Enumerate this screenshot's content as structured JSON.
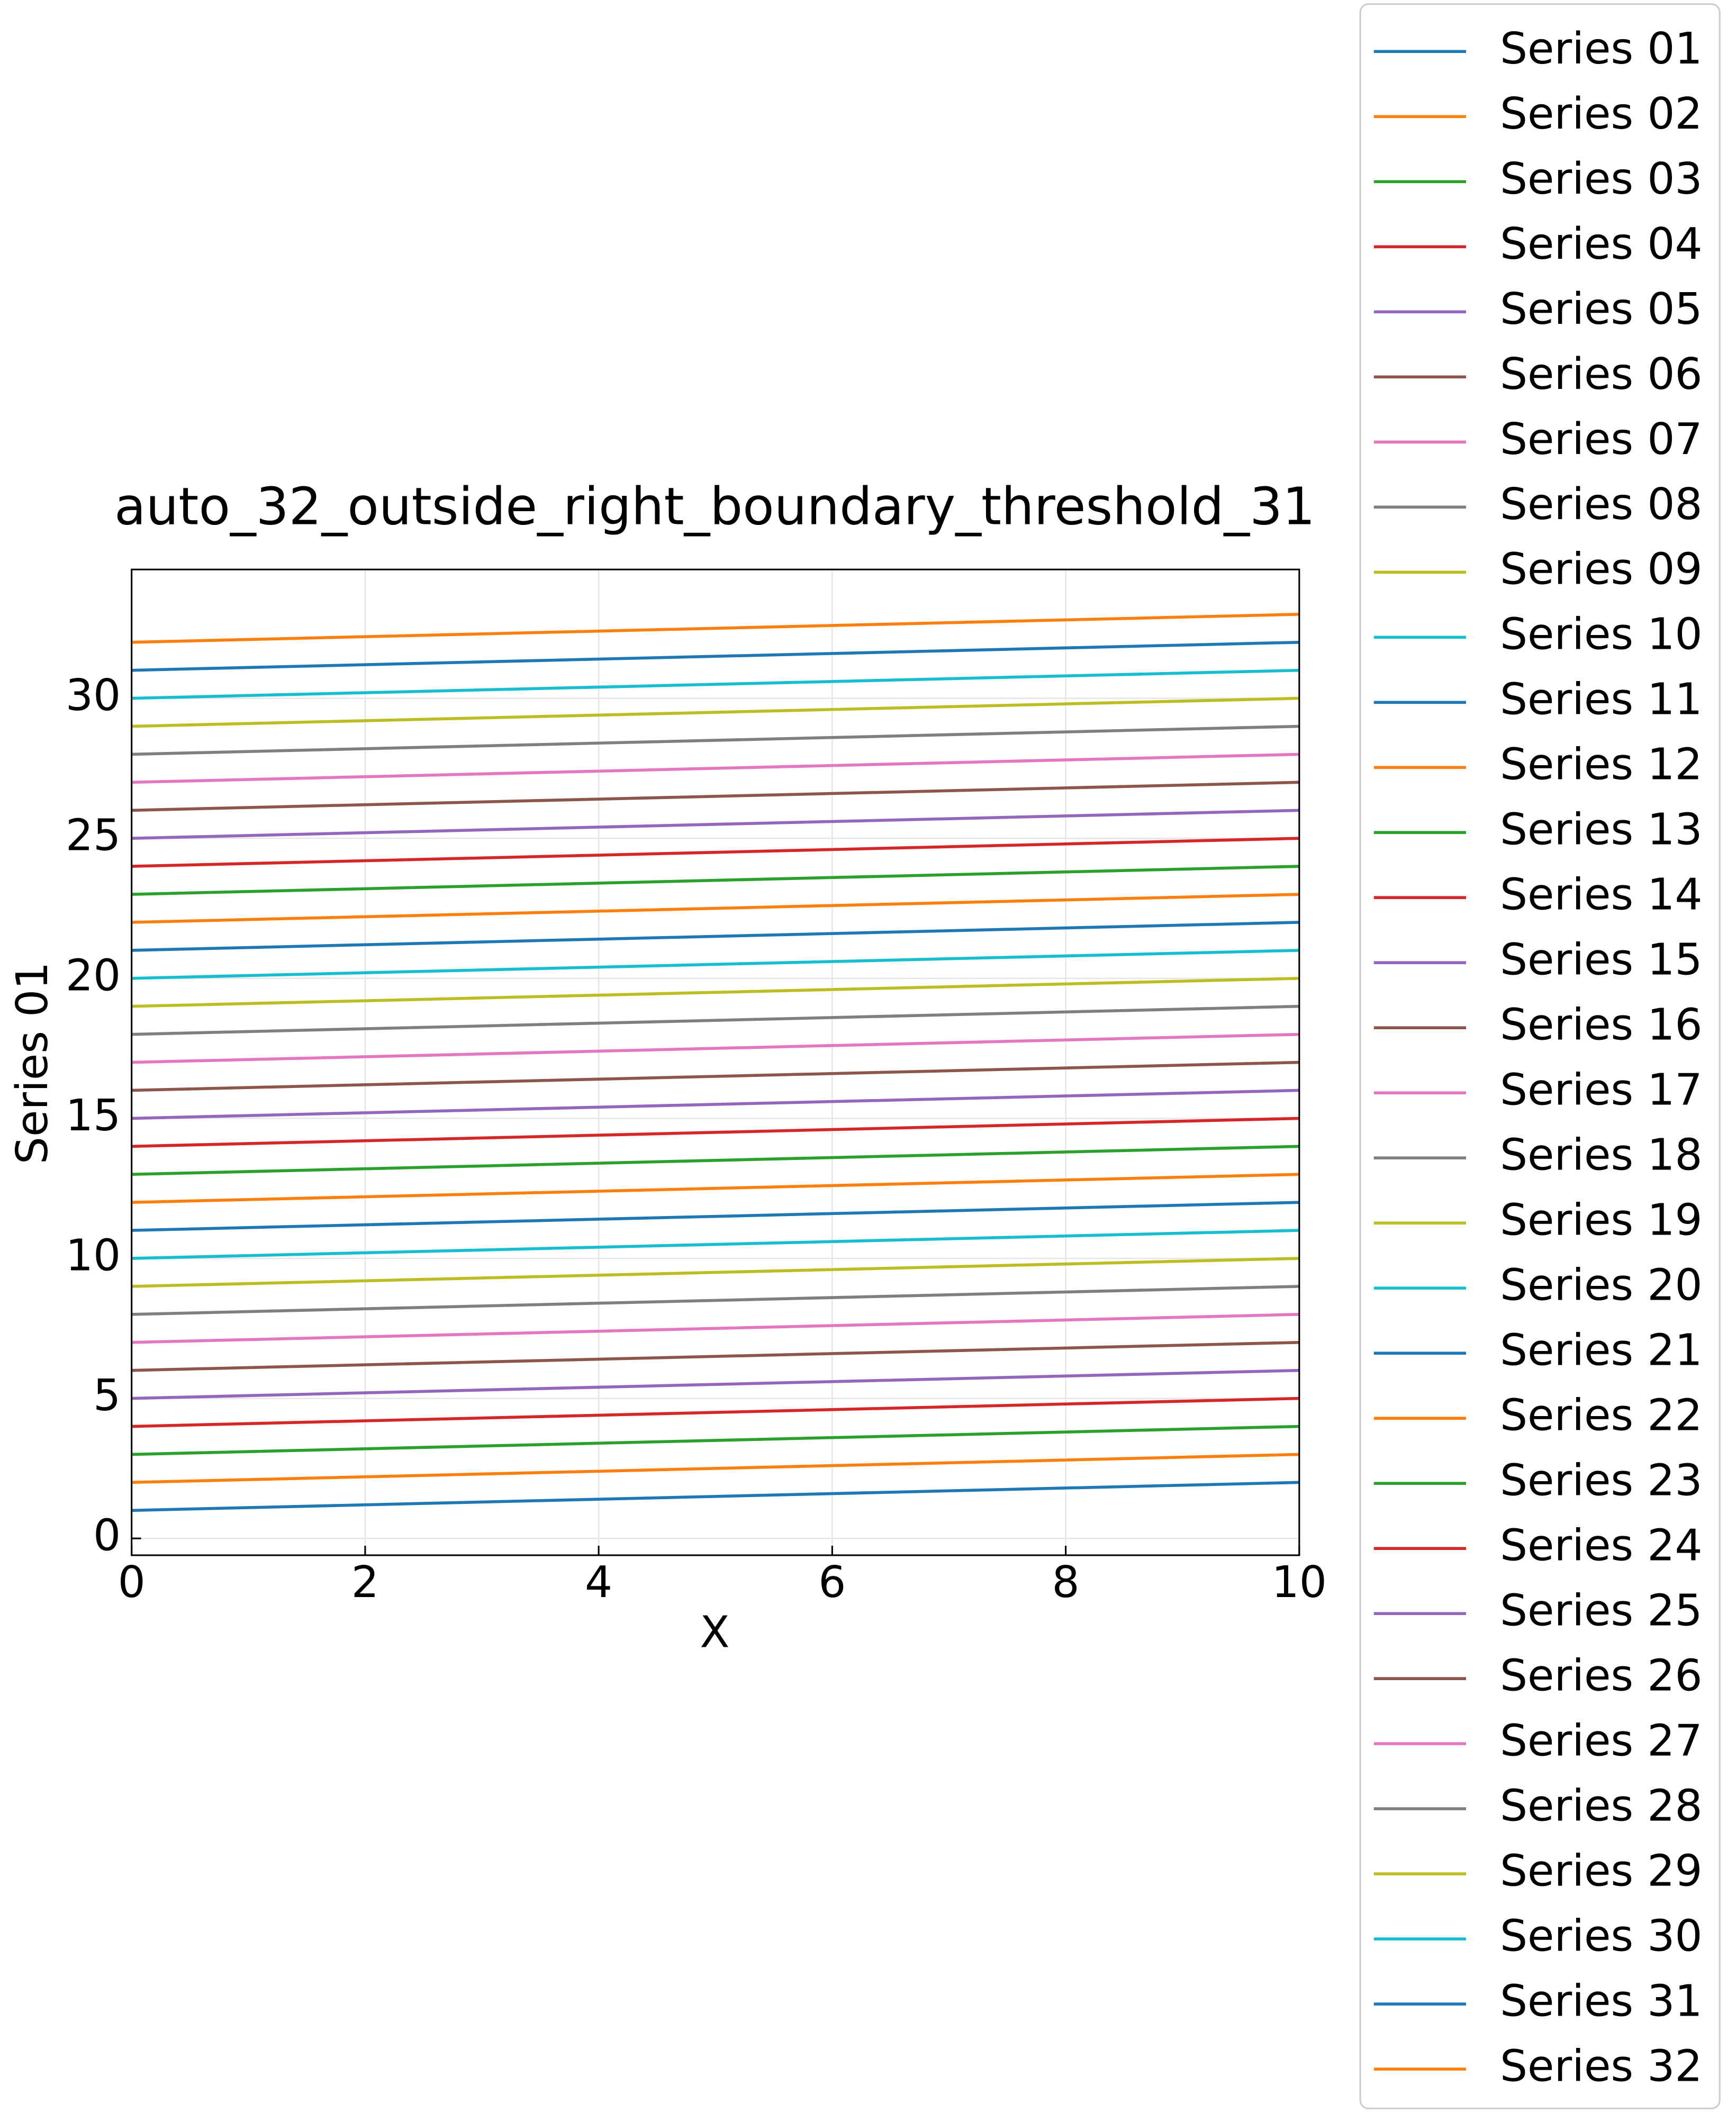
{
  "chart_data": {
    "type": "line",
    "title": "auto_32_outside_right_boundary_threshold_31",
    "xlabel": "X",
    "ylabel": "Series 01",
    "x": [
      0,
      10
    ],
    "xlim": [
      0,
      10
    ],
    "ylim": [
      -0.6,
      34.6
    ],
    "xticks": [
      0,
      2,
      4,
      6,
      8,
      10
    ],
    "yticks": [
      0,
      5,
      10,
      15,
      20,
      25,
      30
    ],
    "grid": true,
    "legend": "outside right",
    "series": [
      {
        "name": "Series 01",
        "color": "#1f77b4",
        "values": [
          1,
          2
        ]
      },
      {
        "name": "Series 02",
        "color": "#ff7f0e",
        "values": [
          2,
          3
        ]
      },
      {
        "name": "Series 03",
        "color": "#2ca02c",
        "values": [
          3,
          4
        ]
      },
      {
        "name": "Series 04",
        "color": "#d62728",
        "values": [
          4,
          5
        ]
      },
      {
        "name": "Series 05",
        "color": "#9467bd",
        "values": [
          5,
          6
        ]
      },
      {
        "name": "Series 06",
        "color": "#8c564b",
        "values": [
          6,
          7
        ]
      },
      {
        "name": "Series 07",
        "color": "#e377c2",
        "values": [
          7,
          8
        ]
      },
      {
        "name": "Series 08",
        "color": "#7f7f7f",
        "values": [
          8,
          9
        ]
      },
      {
        "name": "Series 09",
        "color": "#bcbd22",
        "values": [
          9,
          10
        ]
      },
      {
        "name": "Series 10",
        "color": "#17becf",
        "values": [
          10,
          11
        ]
      },
      {
        "name": "Series 11",
        "color": "#1f77b4",
        "values": [
          11,
          12
        ]
      },
      {
        "name": "Series 12",
        "color": "#ff7f0e",
        "values": [
          12,
          13
        ]
      },
      {
        "name": "Series 13",
        "color": "#2ca02c",
        "values": [
          13,
          14
        ]
      },
      {
        "name": "Series 14",
        "color": "#d62728",
        "values": [
          14,
          15
        ]
      },
      {
        "name": "Series 15",
        "color": "#9467bd",
        "values": [
          15,
          16
        ]
      },
      {
        "name": "Series 16",
        "color": "#8c564b",
        "values": [
          16,
          17
        ]
      },
      {
        "name": "Series 17",
        "color": "#e377c2",
        "values": [
          17,
          18
        ]
      },
      {
        "name": "Series 18",
        "color": "#7f7f7f",
        "values": [
          18,
          19
        ]
      },
      {
        "name": "Series 19",
        "color": "#bcbd22",
        "values": [
          19,
          20
        ]
      },
      {
        "name": "Series 20",
        "color": "#17becf",
        "values": [
          20,
          21
        ]
      },
      {
        "name": "Series 21",
        "color": "#1f77b4",
        "values": [
          21,
          22
        ]
      },
      {
        "name": "Series 22",
        "color": "#ff7f0e",
        "values": [
          22,
          23
        ]
      },
      {
        "name": "Series 23",
        "color": "#2ca02c",
        "values": [
          23,
          24
        ]
      },
      {
        "name": "Series 24",
        "color": "#d62728",
        "values": [
          24,
          25
        ]
      },
      {
        "name": "Series 25",
        "color": "#9467bd",
        "values": [
          25,
          26
        ]
      },
      {
        "name": "Series 26",
        "color": "#8c564b",
        "values": [
          26,
          27
        ]
      },
      {
        "name": "Series 27",
        "color": "#e377c2",
        "values": [
          27,
          28
        ]
      },
      {
        "name": "Series 28",
        "color": "#7f7f7f",
        "values": [
          28,
          29
        ]
      },
      {
        "name": "Series 29",
        "color": "#bcbd22",
        "values": [
          29,
          30
        ]
      },
      {
        "name": "Series 30",
        "color": "#17becf",
        "values": [
          30,
          31
        ]
      },
      {
        "name": "Series 31",
        "color": "#1f77b4",
        "values": [
          31,
          32
        ]
      },
      {
        "name": "Series 32",
        "color": "#ff7f0e",
        "values": [
          32,
          33
        ]
      }
    ]
  }
}
